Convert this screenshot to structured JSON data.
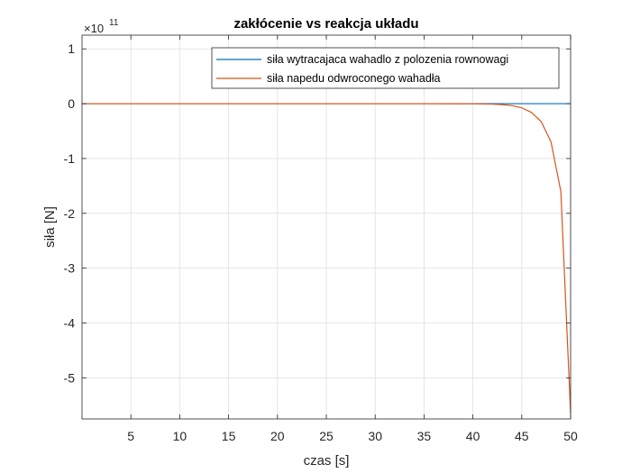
{
  "chart_data": {
    "type": "line",
    "title": "zakłócenie vs reakcja układu",
    "xlabel": "czas [s]",
    "ylabel": "siła [N]",
    "exponent_label": "×10",
    "exponent_power": "11",
    "xlim": [
      0,
      50
    ],
    "ylim": [
      -5.75,
      1.25
    ],
    "y_multiplier": 100000000000.0,
    "x_ticks": [
      5,
      10,
      15,
      20,
      25,
      30,
      35,
      40,
      45,
      50
    ],
    "x_tick_labels": [
      "5",
      "10",
      "15",
      "20",
      "25",
      "30",
      "35",
      "40",
      "45",
      "50"
    ],
    "y_ticks": [
      1,
      0,
      -1,
      -2,
      -3,
      -4,
      -5
    ],
    "y_tick_labels": [
      "1",
      "0",
      "-1",
      "-2",
      "-3",
      "-4",
      "-5"
    ],
    "grid": true,
    "legend_position": "top-right",
    "series": [
      {
        "name": "siła wytracajaca wahadlo z polozenia rownowagi",
        "color": "#0072BD",
        "x": [
          0,
          5,
          10,
          15,
          20,
          25,
          30,
          35,
          40,
          45,
          50
        ],
        "y": [
          0,
          0,
          0,
          0,
          0,
          0,
          0,
          0,
          0,
          0,
          0
        ]
      },
      {
        "name": "siła napedu odwroconego wahadła",
        "color": "#D95319",
        "x": [
          0,
          35,
          38,
          40,
          42,
          43,
          44,
          45,
          46,
          47,
          48,
          49,
          50
        ],
        "y": [
          0,
          -0.0001,
          -0.0005,
          -0.002,
          -0.008,
          -0.017,
          -0.035,
          -0.075,
          -0.16,
          -0.33,
          -0.7,
          -1.6,
          -5.65
        ]
      }
    ]
  }
}
